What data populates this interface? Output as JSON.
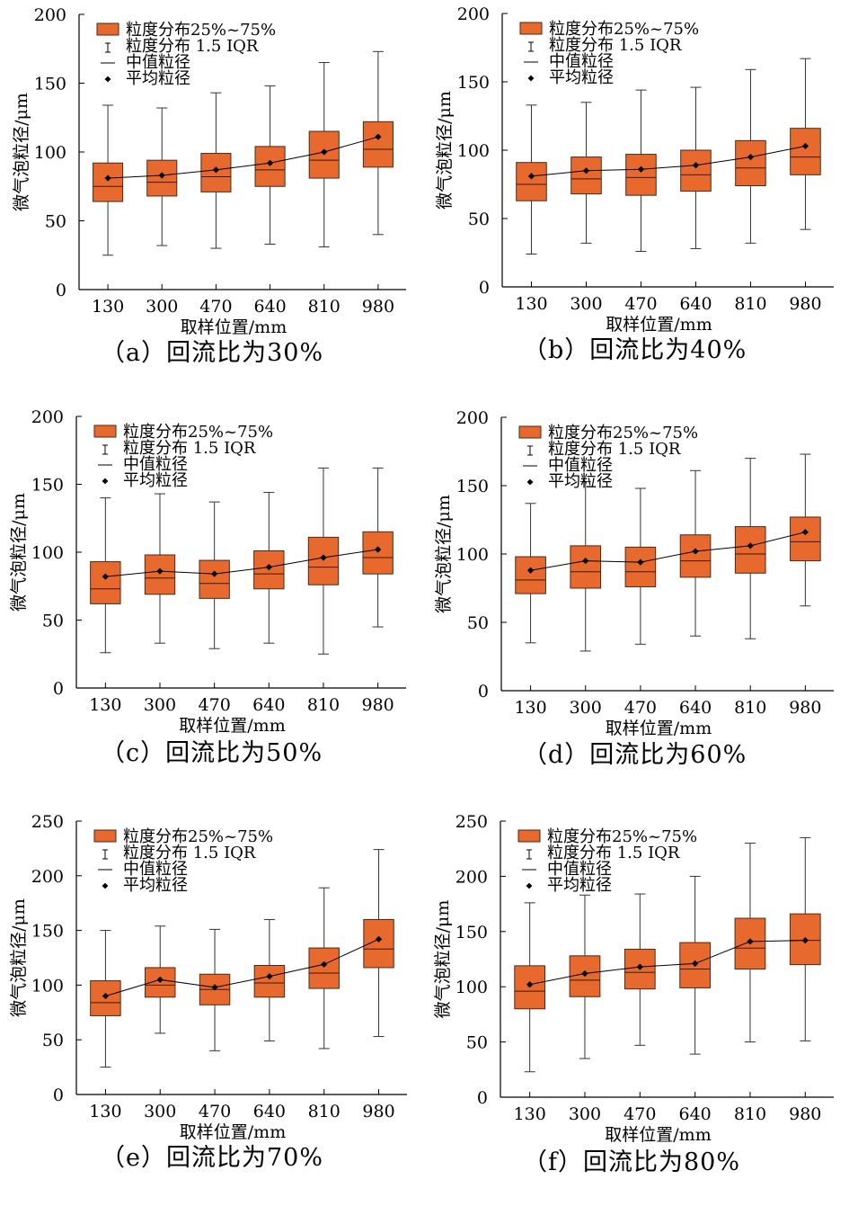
{
  "legend": {
    "box": "粒度分布25%~75%",
    "whisker": "粒度分布 1.5 IQR",
    "median": "中值粒径",
    "mean": "平均粒径"
  },
  "colors": {
    "box_fill": "#e8692e",
    "box_stroke": "#4a2a1a",
    "line": "#000000"
  },
  "chart_data": [
    {
      "type": "box",
      "caption": "（a）回流比为30%",
      "xlabel": "取样位置/mm",
      "ylabel": "微气泡粒径/μm",
      "ylim": [
        0,
        200
      ],
      "yticks": [
        0,
        50,
        100,
        150,
        200
      ],
      "categories": [
        "130",
        "300",
        "470",
        "640",
        "810",
        "980"
      ],
      "whisker_low": [
        25,
        32,
        30,
        33,
        31,
        40
      ],
      "q1": [
        64,
        68,
        71,
        75,
        81,
        89
      ],
      "median": [
        75,
        78,
        82,
        87,
        94,
        102
      ],
      "q3": [
        92,
        94,
        99,
        104,
        115,
        122
      ],
      "whisker_high": [
        134,
        132,
        143,
        148,
        165,
        173
      ],
      "mean": [
        81,
        83,
        87,
        92,
        100,
        111
      ]
    },
    {
      "type": "box",
      "caption": "（b）回流比为40%",
      "xlabel": "取样位置/mm",
      "ylabel": "微气泡粒径/μm",
      "ylim": [
        0,
        200
      ],
      "yticks": [
        0,
        50,
        100,
        150,
        200
      ],
      "categories": [
        "130",
        "300",
        "470",
        "640",
        "810",
        "980"
      ],
      "whisker_low": [
        24,
        32,
        26,
        28,
        32,
        42
      ],
      "q1": [
        63,
        68,
        67,
        70,
        74,
        82
      ],
      "median": [
        75,
        79,
        80,
        82,
        87,
        95
      ],
      "q3": [
        91,
        95,
        97,
        100,
        107,
        116
      ],
      "whisker_high": [
        133,
        135,
        144,
        146,
        159,
        167
      ],
      "mean": [
        81,
        85,
        86,
        89,
        95,
        103
      ]
    },
    {
      "type": "box",
      "caption": "（c）回流比为50%",
      "xlabel": "取样位置/mm",
      "ylabel": "微气泡粒径/μm",
      "ylim": [
        0,
        200
      ],
      "yticks": [
        0,
        50,
        100,
        150,
        200
      ],
      "categories": [
        "130",
        "300",
        "470",
        "640",
        "810",
        "980"
      ],
      "whisker_low": [
        26,
        33,
        29,
        33,
        25,
        45
      ],
      "q1": [
        62,
        69,
        66,
        73,
        76,
        84
      ],
      "median": [
        73,
        81,
        77,
        84,
        89,
        96
      ],
      "q3": [
        93,
        98,
        94,
        101,
        111,
        115
      ],
      "whisker_high": [
        140,
        143,
        137,
        144,
        162,
        162
      ],
      "mean": [
        82,
        86,
        84,
        89,
        96,
        102
      ]
    },
    {
      "type": "box",
      "caption": "（d）回流比为60%",
      "xlabel": "取样位置/mm",
      "ylabel": "微气泡粒径/μm",
      "ylim": [
        0,
        200
      ],
      "yticks": [
        0,
        50,
        100,
        150,
        200
      ],
      "categories": [
        "130",
        "300",
        "470",
        "640",
        "810",
        "980"
      ],
      "whisker_low": [
        35,
        29,
        34,
        40,
        38,
        62
      ],
      "q1": [
        71,
        75,
        76,
        83,
        86,
        95
      ],
      "median": [
        81,
        87,
        87,
        95,
        100,
        109
      ],
      "q3": [
        98,
        106,
        105,
        114,
        120,
        127
      ],
      "whisker_high": [
        137,
        153,
        148,
        161,
        170,
        173
      ],
      "mean": [
        88,
        95,
        94,
        102,
        106,
        116
      ]
    },
    {
      "type": "box",
      "caption": "（e）回流比为70%",
      "xlabel": "取样位置/mm",
      "ylabel": "微气泡粒径/μm",
      "ylim": [
        0,
        250
      ],
      "yticks": [
        0,
        50,
        100,
        150,
        200,
        250
      ],
      "categories": [
        "130",
        "300",
        "470",
        "640",
        "810",
        "980"
      ],
      "whisker_low": [
        25,
        56,
        40,
        49,
        42,
        53
      ],
      "q1": [
        72,
        89,
        82,
        89,
        97,
        116
      ],
      "median": [
        84,
        100,
        96,
        102,
        111,
        133
      ],
      "q3": [
        104,
        116,
        110,
        118,
        134,
        160
      ],
      "whisker_high": [
        150,
        154,
        151,
        160,
        189,
        224
      ],
      "mean": [
        90,
        105,
        98,
        108,
        119,
        142
      ]
    },
    {
      "type": "box",
      "caption": "（f）回流比为80%",
      "xlabel": "取样位置/mm",
      "ylabel": "微气泡粒径/μm",
      "ylim": [
        0,
        250
      ],
      "yticks": [
        0,
        50,
        100,
        150,
        200,
        250
      ],
      "categories": [
        "130",
        "300",
        "470",
        "640",
        "810",
        "980"
      ],
      "whisker_low": [
        23,
        35,
        47,
        39,
        50,
        51
      ],
      "q1": [
        80,
        91,
        98,
        99,
        116,
        120
      ],
      "median": [
        96,
        106,
        113,
        116,
        135,
        142
      ],
      "q3": [
        119,
        128,
        134,
        140,
        162,
        166
      ],
      "whisker_high": [
        176,
        183,
        184,
        200,
        230,
        235
      ],
      "mean": [
        102,
        112,
        118,
        121,
        141,
        142
      ]
    }
  ]
}
